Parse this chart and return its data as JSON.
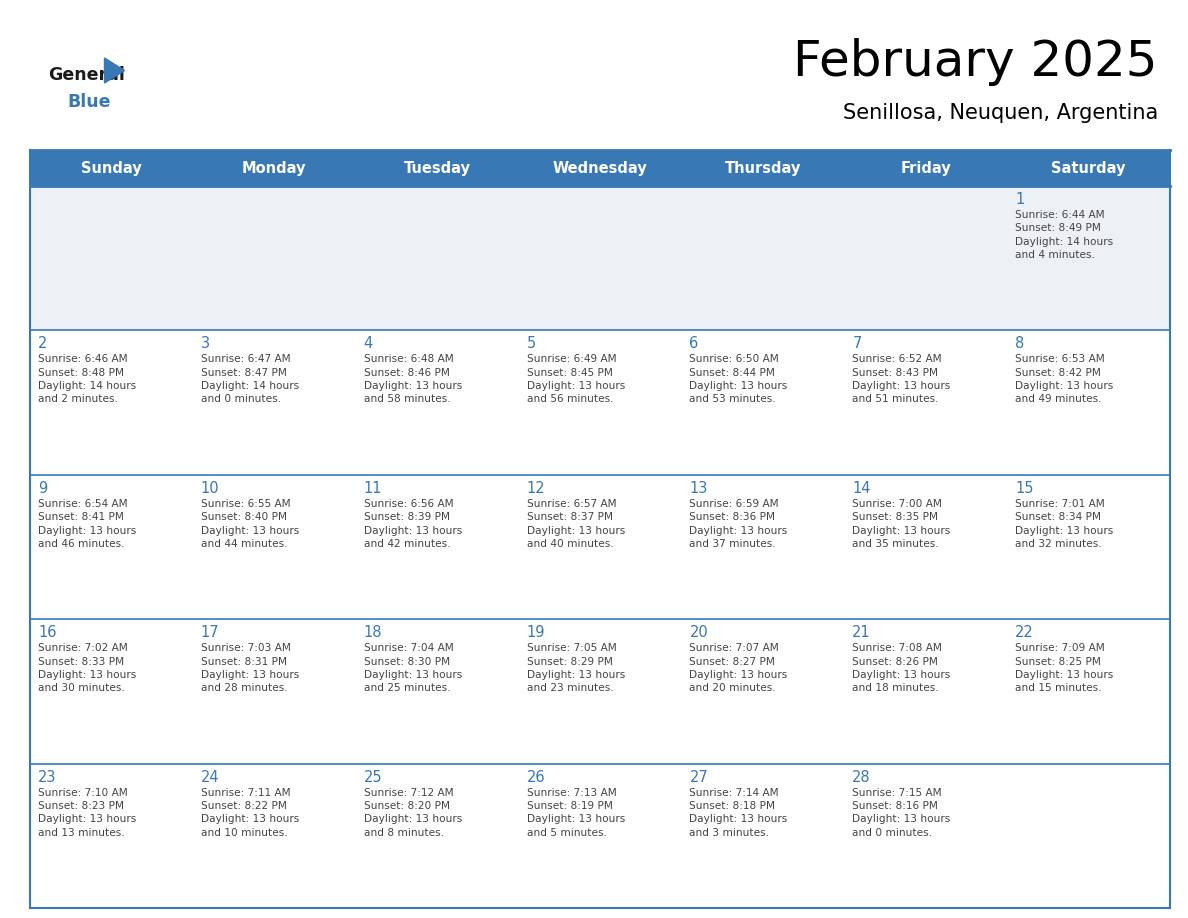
{
  "title": "February 2025",
  "subtitle": "Senillosa, Neuquen, Argentina",
  "days_of_week": [
    "Sunday",
    "Monday",
    "Tuesday",
    "Wednesday",
    "Thursday",
    "Friday",
    "Saturday"
  ],
  "header_bg_color": "#3878b4",
  "header_text_color": "#ffffff",
  "row0_bg_color": "#edf1f5",
  "cell_bg_color": "#ffffff",
  "day_number_color": "#3878b4",
  "text_color": "#444444",
  "line_color": "#3878b4",
  "logo_general_color": "#1a1a1a",
  "logo_blue_color": "#3878b4",
  "calendar_data": [
    [
      {
        "day": null,
        "info": null
      },
      {
        "day": null,
        "info": null
      },
      {
        "day": null,
        "info": null
      },
      {
        "day": null,
        "info": null
      },
      {
        "day": null,
        "info": null
      },
      {
        "day": null,
        "info": null
      },
      {
        "day": 1,
        "info": "Sunrise: 6:44 AM\nSunset: 8:49 PM\nDaylight: 14 hours\nand 4 minutes."
      }
    ],
    [
      {
        "day": 2,
        "info": "Sunrise: 6:46 AM\nSunset: 8:48 PM\nDaylight: 14 hours\nand 2 minutes."
      },
      {
        "day": 3,
        "info": "Sunrise: 6:47 AM\nSunset: 8:47 PM\nDaylight: 14 hours\nand 0 minutes."
      },
      {
        "day": 4,
        "info": "Sunrise: 6:48 AM\nSunset: 8:46 PM\nDaylight: 13 hours\nand 58 minutes."
      },
      {
        "day": 5,
        "info": "Sunrise: 6:49 AM\nSunset: 8:45 PM\nDaylight: 13 hours\nand 56 minutes."
      },
      {
        "day": 6,
        "info": "Sunrise: 6:50 AM\nSunset: 8:44 PM\nDaylight: 13 hours\nand 53 minutes."
      },
      {
        "day": 7,
        "info": "Sunrise: 6:52 AM\nSunset: 8:43 PM\nDaylight: 13 hours\nand 51 minutes."
      },
      {
        "day": 8,
        "info": "Sunrise: 6:53 AM\nSunset: 8:42 PM\nDaylight: 13 hours\nand 49 minutes."
      }
    ],
    [
      {
        "day": 9,
        "info": "Sunrise: 6:54 AM\nSunset: 8:41 PM\nDaylight: 13 hours\nand 46 minutes."
      },
      {
        "day": 10,
        "info": "Sunrise: 6:55 AM\nSunset: 8:40 PM\nDaylight: 13 hours\nand 44 minutes."
      },
      {
        "day": 11,
        "info": "Sunrise: 6:56 AM\nSunset: 8:39 PM\nDaylight: 13 hours\nand 42 minutes."
      },
      {
        "day": 12,
        "info": "Sunrise: 6:57 AM\nSunset: 8:37 PM\nDaylight: 13 hours\nand 40 minutes."
      },
      {
        "day": 13,
        "info": "Sunrise: 6:59 AM\nSunset: 8:36 PM\nDaylight: 13 hours\nand 37 minutes."
      },
      {
        "day": 14,
        "info": "Sunrise: 7:00 AM\nSunset: 8:35 PM\nDaylight: 13 hours\nand 35 minutes."
      },
      {
        "day": 15,
        "info": "Sunrise: 7:01 AM\nSunset: 8:34 PM\nDaylight: 13 hours\nand 32 minutes."
      }
    ],
    [
      {
        "day": 16,
        "info": "Sunrise: 7:02 AM\nSunset: 8:33 PM\nDaylight: 13 hours\nand 30 minutes."
      },
      {
        "day": 17,
        "info": "Sunrise: 7:03 AM\nSunset: 8:31 PM\nDaylight: 13 hours\nand 28 minutes."
      },
      {
        "day": 18,
        "info": "Sunrise: 7:04 AM\nSunset: 8:30 PM\nDaylight: 13 hours\nand 25 minutes."
      },
      {
        "day": 19,
        "info": "Sunrise: 7:05 AM\nSunset: 8:29 PM\nDaylight: 13 hours\nand 23 minutes."
      },
      {
        "day": 20,
        "info": "Sunrise: 7:07 AM\nSunset: 8:27 PM\nDaylight: 13 hours\nand 20 minutes."
      },
      {
        "day": 21,
        "info": "Sunrise: 7:08 AM\nSunset: 8:26 PM\nDaylight: 13 hours\nand 18 minutes."
      },
      {
        "day": 22,
        "info": "Sunrise: 7:09 AM\nSunset: 8:25 PM\nDaylight: 13 hours\nand 15 minutes."
      }
    ],
    [
      {
        "day": 23,
        "info": "Sunrise: 7:10 AM\nSunset: 8:23 PM\nDaylight: 13 hours\nand 13 minutes."
      },
      {
        "day": 24,
        "info": "Sunrise: 7:11 AM\nSunset: 8:22 PM\nDaylight: 13 hours\nand 10 minutes."
      },
      {
        "day": 25,
        "info": "Sunrise: 7:12 AM\nSunset: 8:20 PM\nDaylight: 13 hours\nand 8 minutes."
      },
      {
        "day": 26,
        "info": "Sunrise: 7:13 AM\nSunset: 8:19 PM\nDaylight: 13 hours\nand 5 minutes."
      },
      {
        "day": 27,
        "info": "Sunrise: 7:14 AM\nSunset: 8:18 PM\nDaylight: 13 hours\nand 3 minutes."
      },
      {
        "day": 28,
        "info": "Sunrise: 7:15 AM\nSunset: 8:16 PM\nDaylight: 13 hours\nand 0 minutes."
      },
      {
        "day": null,
        "info": null
      }
    ]
  ]
}
